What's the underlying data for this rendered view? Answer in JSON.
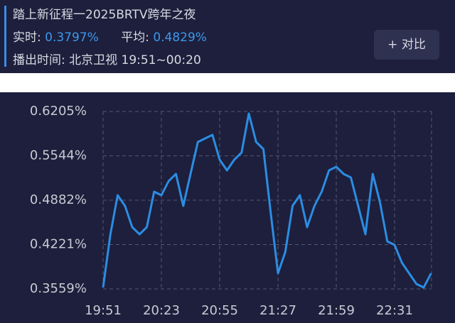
{
  "header": {
    "title": "踏上新征程一2025BRTV跨年之夜",
    "realtime_label": "实时:",
    "realtime_value": "0.3797%",
    "average_label": "平均:",
    "average_value": "0.4829%",
    "broadcast": "播出时间: 北京卫视 19:51~00:20",
    "compare_button": "+ 对比"
  },
  "chart_data": {
    "type": "line",
    "categories": [
      "19:51",
      null,
      null,
      null,
      null,
      null,
      null,
      null,
      "20:23",
      null,
      null,
      null,
      null,
      null,
      null,
      null,
      "20:55",
      null,
      null,
      null,
      null,
      null,
      null,
      null,
      "21:27",
      null,
      null,
      null,
      null,
      null,
      null,
      null,
      "21:59",
      null,
      null,
      null,
      null,
      null,
      null,
      null,
      "22:31",
      null,
      null,
      null,
      null,
      null
    ],
    "series": [
      {
        "name": null,
        "color": "#2b8de3",
        "values": [
          0.358,
          0.4374,
          0.4956,
          0.4797,
          0.448,
          0.4374,
          0.448,
          0.5009,
          0.4956,
          0.5168,
          0.5274,
          0.4797,
          0.5274,
          0.575,
          0.5803,
          0.5856,
          0.5485,
          0.5326,
          0.5485,
          0.5591,
          0.6173,
          0.575,
          0.5644,
          0.4691,
          0.3792,
          0.4109,
          0.4797,
          0.4956,
          0.448,
          0.4797,
          0.5009,
          0.5326,
          0.5379,
          0.5274,
          0.5221,
          0.4797,
          0.4374,
          0.5274,
          0.485,
          0.4268,
          0.4215,
          0.3951,
          0.3792,
          0.3633,
          0.358,
          0.3792
        ]
      }
    ],
    "ylim": [
      0.3559,
      0.6205
    ],
    "yticks": [
      {
        "value": 0.3559,
        "label": "0.3559%"
      },
      {
        "value": 0.4221,
        "label": "0.4221%"
      },
      {
        "value": 0.4882,
        "label": "0.4882%"
      },
      {
        "value": 0.5544,
        "label": "0.5544%"
      },
      {
        "value": 0.6205,
        "label": "0.6205%"
      }
    ],
    "grid": true
  }
}
